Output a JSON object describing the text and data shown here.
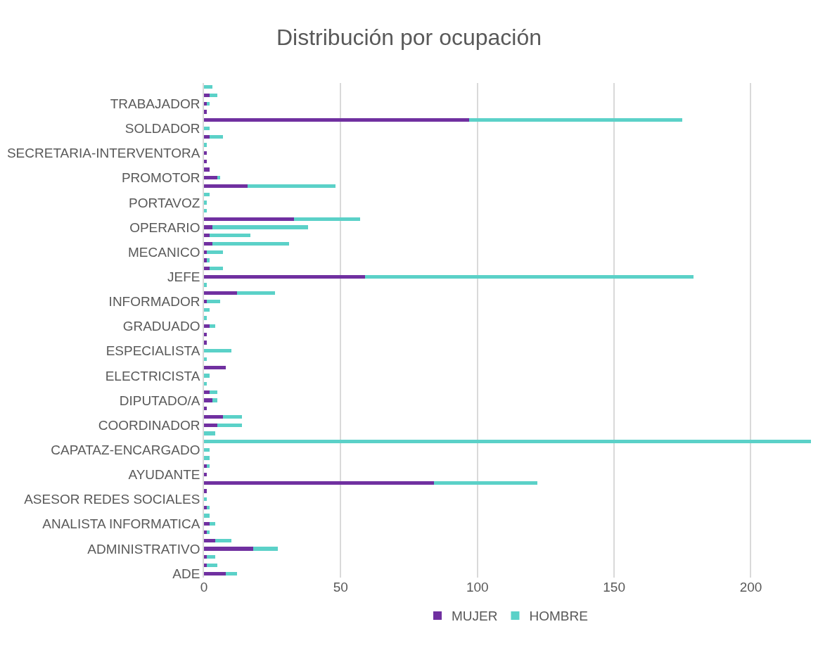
{
  "chart_data": {
    "type": "bar",
    "title": "Distribución por ocupación",
    "orientation": "horizontal",
    "stacked": true,
    "categories": [
      null,
      null,
      "TRABAJADOR",
      null,
      null,
      "SOLDADOR",
      null,
      null,
      "SECRETARIA-INTERVENTORA",
      null,
      null,
      "PROMOTOR",
      null,
      null,
      "PORTAVOZ",
      null,
      null,
      "OPERARIO",
      null,
      null,
      "MECANICO",
      null,
      null,
      "JEFE",
      null,
      null,
      "INFORMADOR",
      null,
      null,
      "GRADUADO",
      null,
      null,
      "ESPECIALISTA",
      null,
      null,
      "ELECTRICISTA",
      null,
      null,
      "DIPUTADO/A",
      null,
      null,
      "COORDINADOR",
      null,
      null,
      "CAPATAZ-ENCARGADO",
      null,
      null,
      "AYUDANTE",
      null,
      null,
      "ASESOR REDES SOCIALES",
      null,
      null,
      "ANALISTA INFORMATICA",
      null,
      null,
      "ADMINISTRATIVO",
      null,
      null,
      "ADE"
    ],
    "series": [
      {
        "name": "MUJER",
        "color": "#7030a0",
        "values": [
          0,
          2,
          1,
          1,
          97,
          0,
          2,
          0,
          1,
          1,
          2,
          5,
          16,
          0,
          0,
          0,
          33,
          3,
          2,
          3,
          1,
          1,
          2,
          59,
          0,
          12,
          1,
          0,
          0,
          2,
          1,
          1,
          0,
          0,
          8,
          0,
          0,
          2,
          3,
          1,
          7,
          5,
          0,
          0,
          0,
          0,
          1,
          1,
          84,
          1,
          0,
          1,
          0,
          2,
          1,
          4,
          18,
          1,
          1,
          8
        ]
      },
      {
        "name": "HOMBRE",
        "color": "#5bd1c8",
        "values": [
          3,
          3,
          1,
          0,
          78,
          2,
          5,
          1,
          0,
          0,
          0,
          1,
          32,
          2,
          1,
          1,
          24,
          35,
          15,
          28,
          6,
          1,
          5,
          120,
          1,
          14,
          5,
          2,
          1,
          2,
          0,
          0,
          10,
          1,
          0,
          2,
          1,
          3,
          2,
          0,
          7,
          9,
          4,
          222,
          2,
          2,
          1,
          0,
          38,
          0,
          1,
          1,
          2,
          2,
          1,
          6,
          9,
          3,
          4,
          4
        ]
      }
    ],
    "xlim": [
      0,
      222
    ],
    "xticks": [
      0,
      50,
      100,
      150,
      200
    ],
    "grid": "x",
    "legend": "bottom"
  }
}
